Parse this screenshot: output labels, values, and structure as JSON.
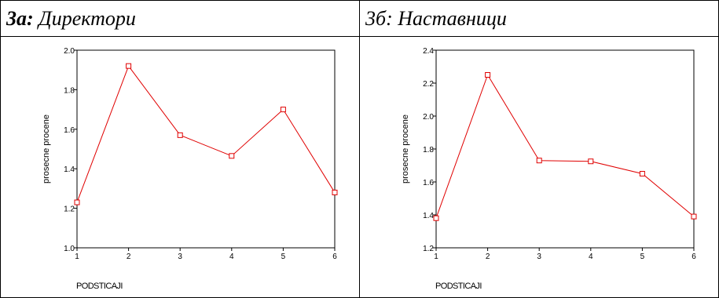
{
  "panels": [
    {
      "title_num": "3а",
      "title_colon": ":",
      "title_text": " Директори"
    },
    {
      "title_num": "3б",
      "title_colon": ":",
      "title_text": " Наставници"
    }
  ],
  "chart_data": [
    {
      "type": "line",
      "xlabel": "PODSTICAJI",
      "ylabel": "prosecne procene",
      "x": [
        1,
        2,
        3,
        4,
        5,
        6
      ],
      "xticks": [
        "1",
        "2",
        "3",
        "4",
        "5",
        "6"
      ],
      "ylim": [
        1.0,
        2.0
      ],
      "yticks": [
        "1.0",
        "1.2",
        "1.4",
        "1.6",
        "1.8",
        "2.0"
      ],
      "series": [
        {
          "values": [
            1.23,
            1.92,
            1.57,
            1.465,
            1.7,
            1.28
          ],
          "color": "#e00000",
          "marker": "square"
        }
      ]
    },
    {
      "type": "line",
      "xlabel": "PODSTICAJI",
      "ylabel": "prosecne procene",
      "x": [
        1,
        2,
        3,
        4,
        5,
        6
      ],
      "xticks": [
        "1",
        "2",
        "3",
        "4",
        "5",
        "6"
      ],
      "ylim": [
        1.2,
        2.4
      ],
      "yticks": [
        "1.2",
        "1.4",
        "1.6",
        "1.8",
        "2.0",
        "2.2",
        "2.4"
      ],
      "series": [
        {
          "values": [
            1.38,
            2.25,
            1.73,
            1.725,
            1.65,
            1.39
          ],
          "color": "#e00000",
          "marker": "square"
        }
      ]
    }
  ]
}
